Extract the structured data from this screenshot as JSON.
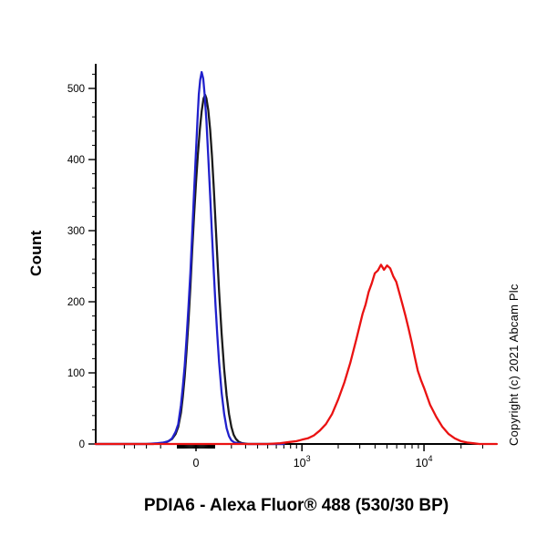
{
  "chart_data": {
    "type": "line",
    "subtype": "flow-cytometry-histogram",
    "title": "PDIA6 - Alexa Fluor® 488 (530/30 BP)",
    "xlabel": "",
    "ylabel": "Count",
    "x_scale": "biexponential (linear near 0, logarithmic above ~10^3)",
    "ylim": [
      0,
      540
    ],
    "grid": "off",
    "legend": "none",
    "y_axis": {
      "major": [
        0,
        100,
        200,
        300,
        400,
        500
      ],
      "minor_step": 20,
      "minor_max": 520
    },
    "x_axis": {
      "major": [
        {
          "value": 0,
          "base": "0",
          "exp": ""
        },
        {
          "value": 1000,
          "base": "10",
          "exp": "3"
        },
        {
          "value": 10000,
          "base": "10",
          "exp": "4"
        }
      ],
      "minor": [
        -500,
        -400,
        -300,
        -200,
        -100,
        -95,
        -90,
        -85,
        -80,
        -75,
        -70,
        -65,
        -60,
        -55,
        -50,
        -45,
        -40,
        -35,
        -30,
        -25,
        -20,
        -15,
        -10,
        -5,
        5,
        10,
        15,
        20,
        25,
        30,
        35,
        40,
        45,
        50,
        55,
        60,
        65,
        70,
        75,
        80,
        85,
        90,
        95,
        100,
        200,
        300,
        400,
        500,
        600,
        700,
        800,
        900,
        2000,
        3000,
        4000,
        5000,
        6000,
        7000,
        8000,
        9000,
        20000,
        30000
      ]
    },
    "series": [
      {
        "name": "black-curve",
        "color": "#1b1b1b",
        "points": [
          [
            -900,
            0
          ],
          [
            -400,
            0
          ],
          [
            -250,
            0
          ],
          [
            -200,
            1
          ],
          [
            -160,
            3
          ],
          [
            -130,
            7
          ],
          [
            -110,
            14
          ],
          [
            -95,
            24
          ],
          [
            -80,
            44
          ],
          [
            -70,
            66
          ],
          [
            -60,
            95
          ],
          [
            -50,
            130
          ],
          [
            -40,
            172
          ],
          [
            -30,
            220
          ],
          [
            -20,
            272
          ],
          [
            -10,
            322
          ],
          [
            0,
            368
          ],
          [
            10,
            408
          ],
          [
            20,
            442
          ],
          [
            30,
            468
          ],
          [
            40,
            486
          ],
          [
            48,
            491
          ],
          [
            55,
            486
          ],
          [
            65,
            470
          ],
          [
            75,
            442
          ],
          [
            85,
            405
          ],
          [
            95,
            360
          ],
          [
            105,
            312
          ],
          [
            115,
            262
          ],
          [
            125,
            215
          ],
          [
            140,
            155
          ],
          [
            155,
            105
          ],
          [
            170,
            68
          ],
          [
            185,
            42
          ],
          [
            200,
            24
          ],
          [
            215,
            13
          ],
          [
            230,
            7
          ],
          [
            250,
            3
          ],
          [
            275,
            1
          ],
          [
            320,
            0
          ],
          [
            700,
            0
          ]
        ]
      },
      {
        "name": "blue-curve",
        "color": "#2121cc",
        "points": [
          [
            -900,
            0
          ],
          [
            -500,
            0
          ],
          [
            -300,
            0
          ],
          [
            -220,
            1
          ],
          [
            -180,
            2
          ],
          [
            -150,
            4
          ],
          [
            -130,
            8
          ],
          [
            -110,
            17
          ],
          [
            -95,
            28
          ],
          [
            -80,
            55
          ],
          [
            -70,
            80
          ],
          [
            -60,
            110
          ],
          [
            -50,
            148
          ],
          [
            -40,
            192
          ],
          [
            -30,
            240
          ],
          [
            -20,
            295
          ],
          [
            -10,
            355
          ],
          [
            0,
            412
          ],
          [
            8,
            458
          ],
          [
            15,
            492
          ],
          [
            22,
            512
          ],
          [
            30,
            523
          ],
          [
            38,
            514
          ],
          [
            45,
            494
          ],
          [
            55,
            455
          ],
          [
            65,
            405
          ],
          [
            75,
            350
          ],
          [
            85,
            295
          ],
          [
            95,
            242
          ],
          [
            105,
            195
          ],
          [
            115,
            152
          ],
          [
            125,
            115
          ],
          [
            140,
            72
          ],
          [
            155,
            42
          ],
          [
            170,
            22
          ],
          [
            185,
            11
          ],
          [
            200,
            5
          ],
          [
            220,
            2
          ],
          [
            250,
            1
          ],
          [
            300,
            0
          ],
          [
            700,
            0
          ]
        ]
      },
      {
        "name": "red-curve",
        "color": "#ea1212",
        "points": [
          [
            -900,
            0
          ],
          [
            250,
            0
          ],
          [
            500,
            0
          ],
          [
            650,
            1
          ],
          [
            800,
            3
          ],
          [
            900,
            4
          ],
          [
            1000,
            6
          ],
          [
            1122,
            8
          ],
          [
            1259,
            12
          ],
          [
            1413,
            19
          ],
          [
            1585,
            28
          ],
          [
            1778,
            42
          ],
          [
            1995,
            62
          ],
          [
            2239,
            86
          ],
          [
            2512,
            114
          ],
          [
            2818,
            148
          ],
          [
            3162,
            183
          ],
          [
            3350,
            196
          ],
          [
            3548,
            214
          ],
          [
            3758,
            226
          ],
          [
            3981,
            240
          ],
          [
            4217,
            244
          ],
          [
            4467,
            252
          ],
          [
            4732,
            245
          ],
          [
            5012,
            251
          ],
          [
            5309,
            247
          ],
          [
            5623,
            236
          ],
          [
            5957,
            228
          ],
          [
            6310,
            212
          ],
          [
            6683,
            196
          ],
          [
            7079,
            180
          ],
          [
            7499,
            162
          ],
          [
            7943,
            143
          ],
          [
            8414,
            122
          ],
          [
            8913,
            103
          ],
          [
            9441,
            90
          ],
          [
            10000,
            79
          ],
          [
            11220,
            55
          ],
          [
            12589,
            38
          ],
          [
            14125,
            24
          ],
          [
            15849,
            14
          ],
          [
            17783,
            8
          ],
          [
            19953,
            4
          ],
          [
            22387,
            2
          ],
          [
            25119,
            1
          ],
          [
            28184,
            0
          ],
          [
            39000,
            0
          ]
        ]
      }
    ],
    "annotations": {
      "copyright": "Copyright (c) 2021 Abcam Plc"
    }
  }
}
